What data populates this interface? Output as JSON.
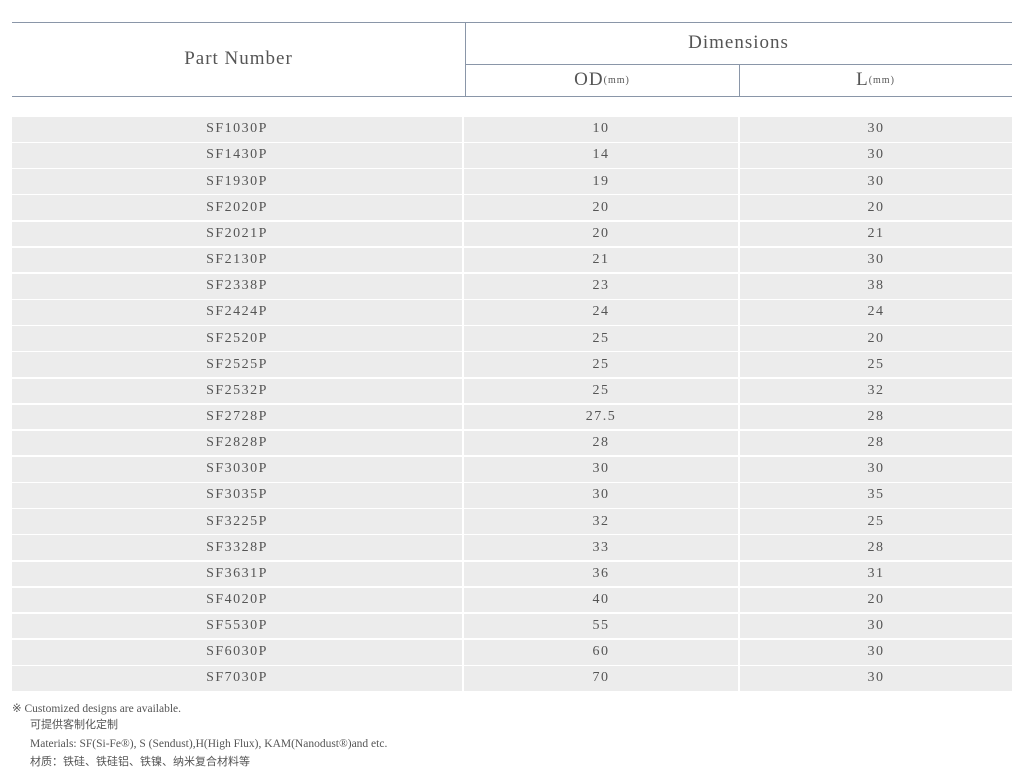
{
  "header": {
    "part_number": "Part Number",
    "dimensions": "Dimensions",
    "od": "OD",
    "od_unit": "(mm)",
    "l": "L",
    "l_unit": "(mm)"
  },
  "table": {
    "rows": [
      [
        "SF1030P",
        10,
        30
      ],
      [
        "SF1430P",
        14,
        30
      ],
      [
        "SF1930P",
        19,
        30
      ],
      [
        "SF2020P",
        20,
        20
      ],
      [
        "SF2021P",
        20,
        21
      ],
      [
        "SF2130P",
        21,
        30
      ],
      [
        "SF2338P",
        23,
        38
      ],
      [
        "SF2424P",
        24,
        24
      ],
      [
        "SF2520P",
        25,
        20
      ],
      [
        "SF2525P",
        25,
        25
      ],
      [
        "SF2532P",
        25,
        32
      ],
      [
        "SF2728P",
        27.5,
        28
      ],
      [
        "SF2828P",
        28,
        28
      ],
      [
        "SF3030P",
        30,
        30
      ],
      [
        "SF3035P",
        30,
        35
      ],
      [
        "SF3225P",
        32,
        25
      ],
      [
        "SF3328P",
        33,
        28
      ],
      [
        "SF3631P",
        36,
        31
      ],
      [
        "SF4020P",
        40,
        20
      ],
      [
        "SF5530P",
        55,
        30
      ],
      [
        "SF6030P",
        60,
        30
      ],
      [
        "SF7030P",
        70,
        30
      ]
    ]
  },
  "notes": [
    "※ Customized designs are available.",
    "可提供客制化定制",
    "Materials: SF(Si-Fe®), S (Sendust),H(High Flux), KAM(Nanodust®)and etc.",
    "材质：铁硅、铁硅铝、铁镍、纳米复合材料等"
  ]
}
